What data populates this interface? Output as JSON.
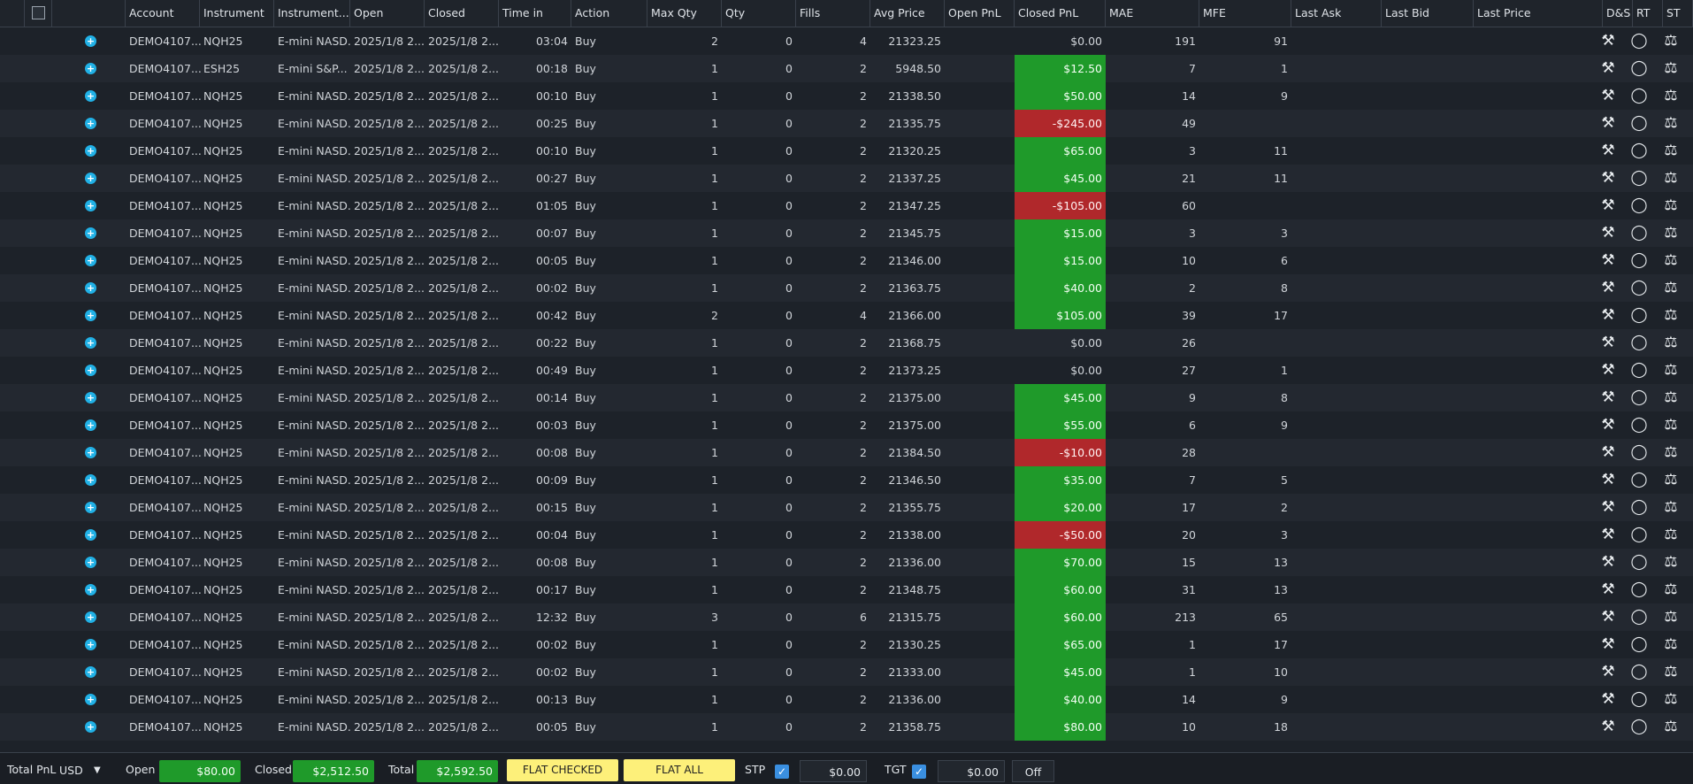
{
  "columns": [
    "Account",
    "Instrument",
    "Instrument...",
    "Open",
    "Closed",
    "Time in",
    "Action",
    "Max Qty",
    "Qty",
    "Fills",
    "Avg Price",
    "Open PnL",
    "Closed PnL",
    "MAE",
    "MFE",
    "Last Ask",
    "Last Bid",
    "Last Price",
    "D&S",
    "RT",
    "ST"
  ],
  "icons": {
    "ds": "gavel-icon",
    "rt": "piggy-bank-icon",
    "st": "scales-icon"
  },
  "rows": [
    {
      "account": "DEMO4107...",
      "instrument": "NQH25",
      "name": "E-mini NASD...",
      "open": "2025/1/8 2...",
      "closed": "2025/1/8 2...",
      "time": "03:04",
      "action": "Buy",
      "maxqty": "2",
      "qty": "0",
      "fills": "4",
      "avg": "21323.25",
      "closed_pnl": "$0.00",
      "pnl_sign": "neu",
      "mae": "191",
      "mfe": "91"
    },
    {
      "account": "DEMO4107...",
      "instrument": "ESH25",
      "name": "E-mini S&P...",
      "open": "2025/1/8 2...",
      "closed": "2025/1/8 2...",
      "time": "00:18",
      "action": "Buy",
      "maxqty": "1",
      "qty": "0",
      "fills": "2",
      "avg": "5948.50",
      "closed_pnl": "$12.50",
      "pnl_sign": "pos",
      "mae": "7",
      "mfe": "1"
    },
    {
      "account": "DEMO4107...",
      "instrument": "NQH25",
      "name": "E-mini NASD...",
      "open": "2025/1/8 2...",
      "closed": "2025/1/8 2...",
      "time": "00:10",
      "action": "Buy",
      "maxqty": "1",
      "qty": "0",
      "fills": "2",
      "avg": "21338.50",
      "closed_pnl": "$50.00",
      "pnl_sign": "pos",
      "mae": "14",
      "mfe": "9"
    },
    {
      "account": "DEMO4107...",
      "instrument": "NQH25",
      "name": "E-mini NASD...",
      "open": "2025/1/8 2...",
      "closed": "2025/1/8 2...",
      "time": "00:25",
      "action": "Buy",
      "maxqty": "1",
      "qty": "0",
      "fills": "2",
      "avg": "21335.75",
      "closed_pnl": "-$245.00",
      "pnl_sign": "neg",
      "mae": "49",
      "mfe": ""
    },
    {
      "account": "DEMO4107...",
      "instrument": "NQH25",
      "name": "E-mini NASD...",
      "open": "2025/1/8 2...",
      "closed": "2025/1/8 2...",
      "time": "00:10",
      "action": "Buy",
      "maxqty": "1",
      "qty": "0",
      "fills": "2",
      "avg": "21320.25",
      "closed_pnl": "$65.00",
      "pnl_sign": "pos",
      "mae": "3",
      "mfe": "11"
    },
    {
      "account": "DEMO4107...",
      "instrument": "NQH25",
      "name": "E-mini NASD...",
      "open": "2025/1/8 2...",
      "closed": "2025/1/8 2...",
      "time": "00:27",
      "action": "Buy",
      "maxqty": "1",
      "qty": "0",
      "fills": "2",
      "avg": "21337.25",
      "closed_pnl": "$45.00",
      "pnl_sign": "pos",
      "mae": "21",
      "mfe": "11"
    },
    {
      "account": "DEMO4107...",
      "instrument": "NQH25",
      "name": "E-mini NASD...",
      "open": "2025/1/8 2...",
      "closed": "2025/1/8 2...",
      "time": "01:05",
      "action": "Buy",
      "maxqty": "1",
      "qty": "0",
      "fills": "2",
      "avg": "21347.25",
      "closed_pnl": "-$105.00",
      "pnl_sign": "neg",
      "mae": "60",
      "mfe": ""
    },
    {
      "account": "DEMO4107...",
      "instrument": "NQH25",
      "name": "E-mini NASD...",
      "open": "2025/1/8 2...",
      "closed": "2025/1/8 2...",
      "time": "00:07",
      "action": "Buy",
      "maxqty": "1",
      "qty": "0",
      "fills": "2",
      "avg": "21345.75",
      "closed_pnl": "$15.00",
      "pnl_sign": "pos",
      "mae": "3",
      "mfe": "3"
    },
    {
      "account": "DEMO4107...",
      "instrument": "NQH25",
      "name": "E-mini NASD...",
      "open": "2025/1/8 2...",
      "closed": "2025/1/8 2...",
      "time": "00:05",
      "action": "Buy",
      "maxqty": "1",
      "qty": "0",
      "fills": "2",
      "avg": "21346.00",
      "closed_pnl": "$15.00",
      "pnl_sign": "pos",
      "mae": "10",
      "mfe": "6"
    },
    {
      "account": "DEMO4107...",
      "instrument": "NQH25",
      "name": "E-mini NASD...",
      "open": "2025/1/8 2...",
      "closed": "2025/1/8 2...",
      "time": "00:02",
      "action": "Buy",
      "maxqty": "1",
      "qty": "0",
      "fills": "2",
      "avg": "21363.75",
      "closed_pnl": "$40.00",
      "pnl_sign": "pos",
      "mae": "2",
      "mfe": "8"
    },
    {
      "account": "DEMO4107...",
      "instrument": "NQH25",
      "name": "E-mini NASD...",
      "open": "2025/1/8 2...",
      "closed": "2025/1/8 2...",
      "time": "00:42",
      "action": "Buy",
      "maxqty": "2",
      "qty": "0",
      "fills": "4",
      "avg": "21366.00",
      "closed_pnl": "$105.00",
      "pnl_sign": "pos",
      "mae": "39",
      "mfe": "17"
    },
    {
      "account": "DEMO4107...",
      "instrument": "NQH25",
      "name": "E-mini NASD...",
      "open": "2025/1/8 2...",
      "closed": "2025/1/8 2...",
      "time": "00:22",
      "action": "Buy",
      "maxqty": "1",
      "qty": "0",
      "fills": "2",
      "avg": "21368.75",
      "closed_pnl": "$0.00",
      "pnl_sign": "neu",
      "mae": "26",
      "mfe": ""
    },
    {
      "account": "DEMO4107...",
      "instrument": "NQH25",
      "name": "E-mini NASD...",
      "open": "2025/1/8 2...",
      "closed": "2025/1/8 2...",
      "time": "00:49",
      "action": "Buy",
      "maxqty": "1",
      "qty": "0",
      "fills": "2",
      "avg": "21373.25",
      "closed_pnl": "$0.00",
      "pnl_sign": "neu",
      "mae": "27",
      "mfe": "1"
    },
    {
      "account": "DEMO4107...",
      "instrument": "NQH25",
      "name": "E-mini NASD...",
      "open": "2025/1/8 2...",
      "closed": "2025/1/8 2...",
      "time": "00:14",
      "action": "Buy",
      "maxqty": "1",
      "qty": "0",
      "fills": "2",
      "avg": "21375.00",
      "closed_pnl": "$45.00",
      "pnl_sign": "pos",
      "mae": "9",
      "mfe": "8"
    },
    {
      "account": "DEMO4107...",
      "instrument": "NQH25",
      "name": "E-mini NASD...",
      "open": "2025/1/8 2...",
      "closed": "2025/1/8 2...",
      "time": "00:03",
      "action": "Buy",
      "maxqty": "1",
      "qty": "0",
      "fills": "2",
      "avg": "21375.00",
      "closed_pnl": "$55.00",
      "pnl_sign": "pos",
      "mae": "6",
      "mfe": "9"
    },
    {
      "account": "DEMO4107...",
      "instrument": "NQH25",
      "name": "E-mini NASD...",
      "open": "2025/1/8 2...",
      "closed": "2025/1/8 2...",
      "time": "00:08",
      "action": "Buy",
      "maxqty": "1",
      "qty": "0",
      "fills": "2",
      "avg": "21384.50",
      "closed_pnl": "-$10.00",
      "pnl_sign": "neg",
      "mae": "28",
      "mfe": ""
    },
    {
      "account": "DEMO4107...",
      "instrument": "NQH25",
      "name": "E-mini NASD...",
      "open": "2025/1/8 2...",
      "closed": "2025/1/8 2...",
      "time": "00:09",
      "action": "Buy",
      "maxqty": "1",
      "qty": "0",
      "fills": "2",
      "avg": "21346.50",
      "closed_pnl": "$35.00",
      "pnl_sign": "pos",
      "mae": "7",
      "mfe": "5"
    },
    {
      "account": "DEMO4107...",
      "instrument": "NQH25",
      "name": "E-mini NASD...",
      "open": "2025/1/8 2...",
      "closed": "2025/1/8 2...",
      "time": "00:15",
      "action": "Buy",
      "maxqty": "1",
      "qty": "0",
      "fills": "2",
      "avg": "21355.75",
      "closed_pnl": "$20.00",
      "pnl_sign": "pos",
      "mae": "17",
      "mfe": "2"
    },
    {
      "account": "DEMO4107...",
      "instrument": "NQH25",
      "name": "E-mini NASD...",
      "open": "2025/1/8 2...",
      "closed": "2025/1/8 2...",
      "time": "00:04",
      "action": "Buy",
      "maxqty": "1",
      "qty": "0",
      "fills": "2",
      "avg": "21338.00",
      "closed_pnl": "-$50.00",
      "pnl_sign": "neg",
      "mae": "20",
      "mfe": "3"
    },
    {
      "account": "DEMO4107...",
      "instrument": "NQH25",
      "name": "E-mini NASD...",
      "open": "2025/1/8 2...",
      "closed": "2025/1/8 2...",
      "time": "00:08",
      "action": "Buy",
      "maxqty": "1",
      "qty": "0",
      "fills": "2",
      "avg": "21336.00",
      "closed_pnl": "$70.00",
      "pnl_sign": "pos",
      "mae": "15",
      "mfe": "13"
    },
    {
      "account": "DEMO4107...",
      "instrument": "NQH25",
      "name": "E-mini NASD...",
      "open": "2025/1/8 2...",
      "closed": "2025/1/8 2...",
      "time": "00:17",
      "action": "Buy",
      "maxqty": "1",
      "qty": "0",
      "fills": "2",
      "avg": "21348.75",
      "closed_pnl": "$60.00",
      "pnl_sign": "pos",
      "mae": "31",
      "mfe": "13"
    },
    {
      "account": "DEMO4107...",
      "instrument": "NQH25",
      "name": "E-mini NASD...",
      "open": "2025/1/8 2...",
      "closed": "2025/1/8 2...",
      "time": "12:32",
      "action": "Buy",
      "maxqty": "3",
      "qty": "0",
      "fills": "6",
      "avg": "21315.75",
      "closed_pnl": "$60.00",
      "pnl_sign": "pos",
      "mae": "213",
      "mfe": "65"
    },
    {
      "account": "DEMO4107...",
      "instrument": "NQH25",
      "name": "E-mini NASD...",
      "open": "2025/1/8 2...",
      "closed": "2025/1/8 2...",
      "time": "00:02",
      "action": "Buy",
      "maxqty": "1",
      "qty": "0",
      "fills": "2",
      "avg": "21330.25",
      "closed_pnl": "$65.00",
      "pnl_sign": "pos",
      "mae": "1",
      "mfe": "17"
    },
    {
      "account": "DEMO4107...",
      "instrument": "NQH25",
      "name": "E-mini NASD...",
      "open": "2025/1/8 2...",
      "closed": "2025/1/8 2...",
      "time": "00:02",
      "action": "Buy",
      "maxqty": "1",
      "qty": "0",
      "fills": "2",
      "avg": "21333.00",
      "closed_pnl": "$45.00",
      "pnl_sign": "pos",
      "mae": "1",
      "mfe": "10"
    },
    {
      "account": "DEMO4107...",
      "instrument": "NQH25",
      "name": "E-mini NASD...",
      "open": "2025/1/8 2...",
      "closed": "2025/1/8 2...",
      "time": "00:13",
      "action": "Buy",
      "maxqty": "1",
      "qty": "0",
      "fills": "2",
      "avg": "21336.00",
      "closed_pnl": "$40.00",
      "pnl_sign": "pos",
      "mae": "14",
      "mfe": "9"
    },
    {
      "account": "DEMO4107...",
      "instrument": "NQH25",
      "name": "E-mini NASD...",
      "open": "2025/1/8 2...",
      "closed": "2025/1/8 2...",
      "time": "00:05",
      "action": "Buy",
      "maxqty": "1",
      "qty": "0",
      "fills": "2",
      "avg": "21358.75",
      "closed_pnl": "$80.00",
      "pnl_sign": "pos",
      "mae": "10",
      "mfe": "18"
    }
  ],
  "footer": {
    "total_pnl_label": "Total PnL",
    "currency": "USD",
    "open_label": "Open",
    "open_value": "$80.00",
    "closed_label": "Closed",
    "closed_value": "$2,512.50",
    "total_label": "Total",
    "total_value": "$2,592.50",
    "flat_checked": "FLAT CHECKED",
    "flat_all": "FLAT ALL",
    "stp_label": "STP",
    "stp_value": "$0.00",
    "tgt_label": "TGT",
    "tgt_value": "$0.00",
    "off_label": "Off"
  },
  "colors": {
    "positive": "#1f9a2a",
    "negative": "#b0282b",
    "button_yellow": "#fdf07a",
    "checkbox_blue": "#3a8fe0"
  }
}
